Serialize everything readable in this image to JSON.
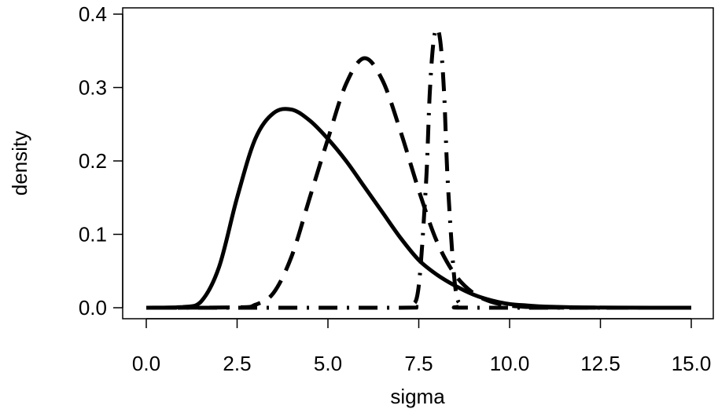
{
  "chart_data": {
    "type": "line",
    "title": "",
    "xlabel": "sigma",
    "ylabel": "density",
    "xlim": [
      0,
      15
    ],
    "ylim": [
      0,
      0.4
    ],
    "x_ticks": [
      "0.0",
      "2.5",
      "5.0",
      "7.5",
      "10.0",
      "12.5",
      "15.0"
    ],
    "y_ticks": [
      "0.0",
      "0.1",
      "0.2",
      "0.3",
      "0.4"
    ],
    "grid": false,
    "legend": "none",
    "series": [
      {
        "style": "solid",
        "color": "#000000",
        "x": [
          0,
          1.0,
          1.5,
          2.0,
          2.5,
          3.0,
          3.5,
          4.0,
          4.5,
          5.0,
          5.5,
          6.0,
          6.5,
          7.0,
          7.5,
          8.0,
          8.5,
          9.0,
          9.5,
          10.0,
          10.5,
          11.0,
          12.0,
          13.0,
          15.0
        ],
        "y": [
          0,
          0.001,
          0.008,
          0.055,
          0.15,
          0.23,
          0.265,
          0.27,
          0.255,
          0.23,
          0.2,
          0.165,
          0.13,
          0.095,
          0.065,
          0.045,
          0.03,
          0.018,
          0.01,
          0.005,
          0.003,
          0.0015,
          0.0004,
          0.0001,
          0
        ]
      },
      {
        "style": "dashed",
        "color": "#000000",
        "x": [
          0,
          2.5,
          3.0,
          3.5,
          4.0,
          4.5,
          5.0,
          5.5,
          6.0,
          6.5,
          7.0,
          7.5,
          8.0,
          8.5,
          9.0,
          9.5,
          10.0,
          10.5,
          11.0,
          12.0,
          15.0
        ],
        "y": [
          0,
          0.0005,
          0.004,
          0.02,
          0.07,
          0.15,
          0.23,
          0.305,
          0.34,
          0.31,
          0.24,
          0.16,
          0.09,
          0.045,
          0.02,
          0.008,
          0.003,
          0.001,
          0.0003,
          0.0001,
          0
        ]
      },
      {
        "style": "dotdash",
        "color": "#000000",
        "x": [
          0,
          7.0,
          7.3,
          7.5,
          7.7,
          7.8,
          7.9,
          8.0,
          8.1,
          8.2,
          8.3,
          8.5,
          8.7,
          9.0,
          15.0
        ],
        "y": [
          0,
          0,
          0.003,
          0.03,
          0.17,
          0.29,
          0.36,
          0.38,
          0.36,
          0.29,
          0.17,
          0.03,
          0.003,
          0,
          0
        ]
      }
    ]
  }
}
